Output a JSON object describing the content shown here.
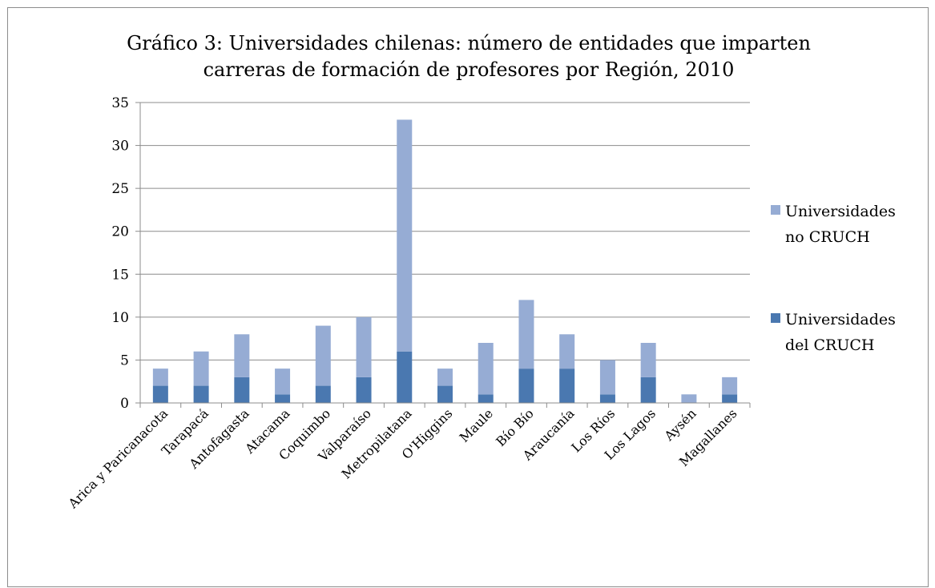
{
  "chart_data": {
    "type": "bar",
    "stacked": true,
    "title": "Gráfico 3: Universidades chilenas: número de entidades que imparten carreras de  formación de profesores por Región, 2010",
    "title_lines": [
      "Gráfico 3: Universidades chilenas: número de entidades que imparten",
      "carreras de  formación de profesores por Región, 2010"
    ],
    "categories": [
      "Arica y Paricanacota",
      "Tarapacá",
      "Antofagasta",
      "Atacama",
      "Coquimbo",
      "Valparaíso",
      "Metropilatana",
      "O'Higgins",
      "Maule",
      "Bío Bío",
      "Araucanía",
      "Los Ríos",
      "Los Lagos",
      "Aysén",
      "Magallanes"
    ],
    "series": [
      {
        "name": "Universidades del CRUCH",
        "legend_lines": [
          "Universidades",
          "del CRUCH"
        ],
        "color": "#4a78b0",
        "values": [
          2,
          2,
          3,
          1,
          2,
          3,
          6,
          2,
          1,
          4,
          4,
          1,
          3,
          0,
          1
        ]
      },
      {
        "name": "Universidades no CRUCH",
        "legend_lines": [
          "Universidades",
          "no CRUCH"
        ],
        "color": "#96acd4",
        "values": [
          2,
          4,
          5,
          3,
          7,
          7,
          27,
          2,
          6,
          8,
          4,
          4,
          4,
          1,
          2
        ]
      }
    ],
    "ylim": [
      0,
      35
    ],
    "yticks": [
      "0",
      "5",
      "10",
      "15",
      "20",
      "25",
      "30",
      "35"
    ],
    "xlabel": "",
    "ylabel": "",
    "grid": true,
    "legend_position": "right"
  }
}
